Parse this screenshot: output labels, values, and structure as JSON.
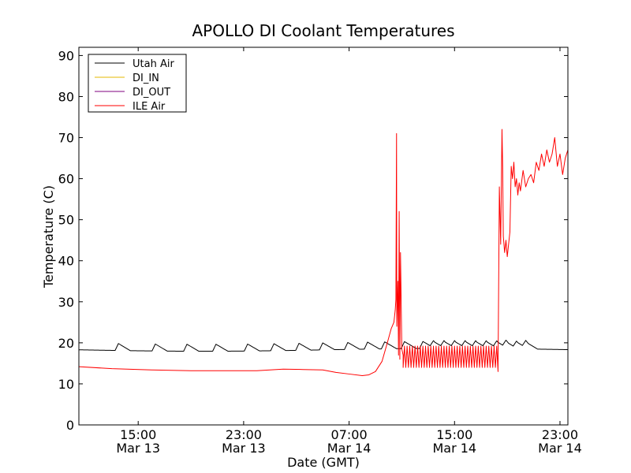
{
  "chart_data": {
    "type": "line",
    "title": "APOLLO DI Coolant Temperatures",
    "xlabel": "Date (GMT)",
    "ylabel": "Temperature (C)",
    "xlim": [
      10.5,
      47.6
    ],
    "ylim": [
      0,
      92
    ],
    "x_unit": "hours since Mar 13 00:00 GMT",
    "yticks": [
      0,
      10,
      20,
      30,
      40,
      50,
      60,
      70,
      80,
      90
    ],
    "xticks": [
      {
        "value": 15,
        "time": "15:00",
        "date": "Mar 13"
      },
      {
        "value": 23,
        "time": "23:00",
        "date": "Mar 13"
      },
      {
        "value": 31,
        "time": "07:00",
        "date": "Mar 14"
      },
      {
        "value": 39,
        "time": "15:00",
        "date": "Mar 14"
      },
      {
        "value": 47,
        "time": "23:00",
        "date": "Mar 14"
      }
    ],
    "legend": {
      "position": "top-left"
    },
    "series": [
      {
        "name": "Utah Air",
        "color": "#000000",
        "baseline": 18.3,
        "bump_height": 1.7,
        "bump_times": [
          13.5,
          16.3,
          18.7,
          20.9,
          23.3,
          25.3,
          27.2,
          29.0,
          30.9,
          32.4,
          33.7,
          35.2,
          36.6,
          37.4,
          38.2,
          39.0,
          39.8,
          40.6,
          41.4,
          42.2,
          42.9,
          43.7,
          44.4
        ]
      },
      {
        "name": "DI_IN",
        "color": "#e6b800",
        "x": [],
        "y": []
      },
      {
        "name": "DI_OUT",
        "color": "#7f007f",
        "x": [],
        "y": []
      },
      {
        "name": "ILE Air",
        "color": "#ff0000",
        "x": [
          10.5,
          13.0,
          16.0,
          19.0,
          22.0,
          24.0,
          26.0,
          27.5,
          29.0,
          30.0,
          31.0,
          32.0,
          32.5,
          33.0,
          33.5,
          33.9,
          34.2,
          34.4,
          34.5,
          34.55,
          34.6,
          34.62,
          34.7,
          34.75,
          34.8,
          34.85,
          34.9,
          35.0,
          35.1
        ],
        "y": [
          14.2,
          13.7,
          13.4,
          13.2,
          13.2,
          13.2,
          13.6,
          13.5,
          13.4,
          12.8,
          12.4,
          12.0,
          12.2,
          13.0,
          15.5,
          20.0,
          23.5,
          25.0,
          28.0,
          30.5,
          71.0,
          24.0,
          35.0,
          17.0,
          52.0,
          16.0,
          42.0,
          18.5,
          17.0
        ],
        "oscillation": {
          "start": 35.1,
          "end": 42.3,
          "low": 14.0,
          "high": 19.2,
          "period": 0.2
        },
        "tail_x": [
          42.3,
          42.4,
          42.5,
          42.6,
          42.65,
          42.7,
          42.8,
          42.9,
          43.0,
          43.1,
          43.2,
          43.3,
          43.4,
          43.5,
          43.6,
          43.7,
          43.8,
          43.9,
          44.0,
          44.2,
          44.4,
          44.6,
          44.8,
          45.0,
          45.2,
          45.4,
          45.6,
          45.8,
          46.0,
          46.2,
          46.4,
          46.6,
          46.8,
          47.0,
          47.2,
          47.4,
          47.6
        ],
        "tail_y": [
          13.0,
          58.0,
          44.0,
          72.0,
          63.0,
          46.0,
          42.0,
          45.0,
          41.0,
          44.0,
          47.0,
          63.0,
          60.0,
          64.0,
          58.0,
          60.0,
          56.0,
          59.0,
          57.0,
          62.0,
          58.0,
          60.0,
          61.0,
          59.0,
          64.0,
          62.0,
          66.0,
          63.0,
          67.0,
          64.0,
          66.0,
          70.0,
          63.0,
          66.0,
          61.0,
          65.0,
          67.0
        ]
      }
    ]
  }
}
